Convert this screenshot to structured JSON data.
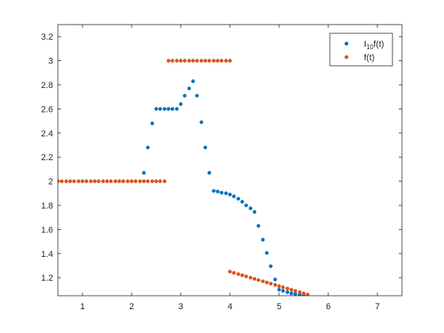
{
  "chart_data": {
    "type": "scatter",
    "xlim": [
      0.5,
      7.5
    ],
    "ylim": [
      1.05,
      3.3
    ],
    "x_ticks": [
      1,
      2,
      3,
      4,
      5,
      6,
      7
    ],
    "y_ticks": [
      1.2,
      1.4,
      1.6,
      1.8,
      2,
      2.2,
      2.4,
      2.6,
      2.8,
      3,
      3.2
    ],
    "x_tick_labels": [
      "1",
      "2",
      "3",
      "4",
      "5",
      "6",
      "7"
    ],
    "y_tick_labels": [
      "1.2",
      "1.4",
      "1.6",
      "1.8",
      "2",
      "2.2",
      "2.4",
      "2.6",
      "2.8",
      "3",
      "3.2"
    ],
    "grid": false,
    "legend_position": "top-right",
    "legend": {
      "entry1": {
        "base": "I",
        "sub": "10",
        "suffix": "f(t)"
      },
      "entry2": "f(t)"
    },
    "series": [
      {
        "key": "I10f",
        "color": "#0072BD",
        "points": [
          [
            2.25,
            2.07
          ],
          [
            2.33,
            2.28
          ],
          [
            2.42,
            2.48
          ],
          [
            2.5,
            2.6
          ],
          [
            2.58,
            2.6
          ],
          [
            2.67,
            2.6
          ],
          [
            2.75,
            2.6
          ],
          [
            2.83,
            2.6
          ],
          [
            2.92,
            2.6
          ],
          [
            3.0,
            2.64
          ],
          [
            3.08,
            2.71
          ],
          [
            3.17,
            2.77
          ],
          [
            3.25,
            2.83
          ],
          [
            3.33,
            2.71
          ],
          [
            3.42,
            2.49
          ],
          [
            3.5,
            2.28
          ],
          [
            3.58,
            2.07
          ],
          [
            3.67,
            1.92
          ],
          [
            3.75,
            1.915
          ],
          [
            3.83,
            1.905
          ],
          [
            3.92,
            1.9
          ],
          [
            4.0,
            1.89
          ],
          [
            4.08,
            1.875
          ],
          [
            4.17,
            1.855
          ],
          [
            4.25,
            1.83
          ],
          [
            4.33,
            1.8
          ],
          [
            4.42,
            1.775
          ],
          [
            4.5,
            1.745
          ],
          [
            4.58,
            1.63
          ],
          [
            4.67,
            1.515
          ],
          [
            4.75,
            1.405
          ],
          [
            4.83,
            1.295
          ],
          [
            4.92,
            1.185
          ],
          [
            5.0,
            1.1
          ],
          [
            5.08,
            1.09
          ],
          [
            5.17,
            1.08
          ],
          [
            5.25,
            1.07
          ],
          [
            5.33,
            1.065
          ],
          [
            5.42,
            1.06
          ],
          [
            5.5,
            1.05
          ]
        ]
      },
      {
        "key": "f",
        "color": "#D95319",
        "points": [
          [
            0.5,
            2
          ],
          [
            0.58,
            2
          ],
          [
            0.67,
            2
          ],
          [
            0.75,
            2
          ],
          [
            0.83,
            2
          ],
          [
            0.92,
            2
          ],
          [
            1.0,
            2
          ],
          [
            1.08,
            2
          ],
          [
            1.17,
            2
          ],
          [
            1.25,
            2
          ],
          [
            1.33,
            2
          ],
          [
            1.42,
            2
          ],
          [
            1.5,
            2
          ],
          [
            1.58,
            2
          ],
          [
            1.67,
            2
          ],
          [
            1.75,
            2
          ],
          [
            1.83,
            2
          ],
          [
            1.92,
            2
          ],
          [
            2.0,
            2
          ],
          [
            2.08,
            2
          ],
          [
            2.17,
            2
          ],
          [
            2.25,
            2
          ],
          [
            2.33,
            2
          ],
          [
            2.42,
            2
          ],
          [
            2.5,
            2
          ],
          [
            2.58,
            2
          ],
          [
            2.67,
            2
          ],
          [
            2.75,
            3
          ],
          [
            2.83,
            3
          ],
          [
            2.92,
            3
          ],
          [
            3.0,
            3
          ],
          [
            3.08,
            3
          ],
          [
            3.17,
            3
          ],
          [
            3.25,
            3
          ],
          [
            3.33,
            3
          ],
          [
            3.42,
            3
          ],
          [
            3.5,
            3
          ],
          [
            3.58,
            3
          ],
          [
            3.67,
            3
          ],
          [
            3.75,
            3
          ],
          [
            3.83,
            3
          ],
          [
            3.92,
            3
          ],
          [
            4.0,
            3
          ],
          [
            4.0,
            1.25
          ],
          [
            4.08,
            1.24
          ],
          [
            4.17,
            1.23
          ],
          [
            4.25,
            1.22
          ],
          [
            4.33,
            1.21
          ],
          [
            4.42,
            1.2
          ],
          [
            4.5,
            1.19
          ],
          [
            4.58,
            1.18
          ],
          [
            4.67,
            1.17
          ],
          [
            4.75,
            1.16
          ],
          [
            4.83,
            1.15
          ],
          [
            4.92,
            1.14
          ],
          [
            5.0,
            1.13
          ],
          [
            5.08,
            1.12
          ],
          [
            5.17,
            1.11
          ],
          [
            5.25,
            1.1
          ],
          [
            5.33,
            1.09
          ],
          [
            5.42,
            1.08
          ],
          [
            5.5,
            1.07
          ],
          [
            5.58,
            1.06
          ]
        ]
      }
    ]
  }
}
